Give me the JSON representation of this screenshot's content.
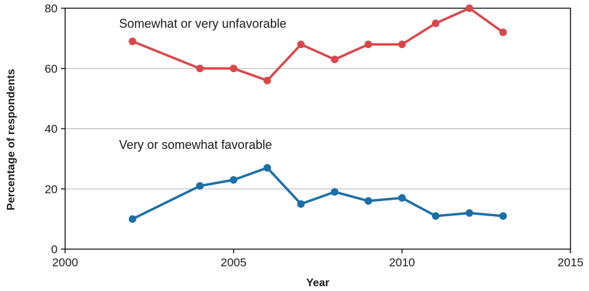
{
  "chart_data": {
    "type": "line",
    "title": "",
    "xlabel": "Year",
    "ylabel": "Percentage of respondents",
    "xlim": [
      2000,
      2015
    ],
    "ylim": [
      0,
      80
    ],
    "x_ticks": [
      "2000",
      "2005",
      "2010",
      "2015"
    ],
    "y_ticks": [
      "0",
      "20",
      "40",
      "60",
      "80"
    ],
    "grid": "horizontal",
    "series": [
      {
        "name": "Somewhat or very unfavorable",
        "color": "#d9474a",
        "x": [
          2002,
          2004,
          2005,
          2006,
          2007,
          2008,
          2009,
          2010,
          2011,
          2012,
          2013
        ],
        "y": [
          69,
          60,
          60,
          56,
          68,
          63,
          68,
          68,
          75,
          80,
          72
        ]
      },
      {
        "name": "Very or somewhat favorable",
        "color": "#1a6fa8",
        "x": [
          2002,
          2004,
          2005,
          2006,
          2007,
          2008,
          2009,
          2010,
          2011,
          2012,
          2013
        ],
        "y": [
          10,
          21,
          23,
          27,
          15,
          19,
          16,
          17,
          11,
          12,
          11
        ]
      }
    ]
  }
}
